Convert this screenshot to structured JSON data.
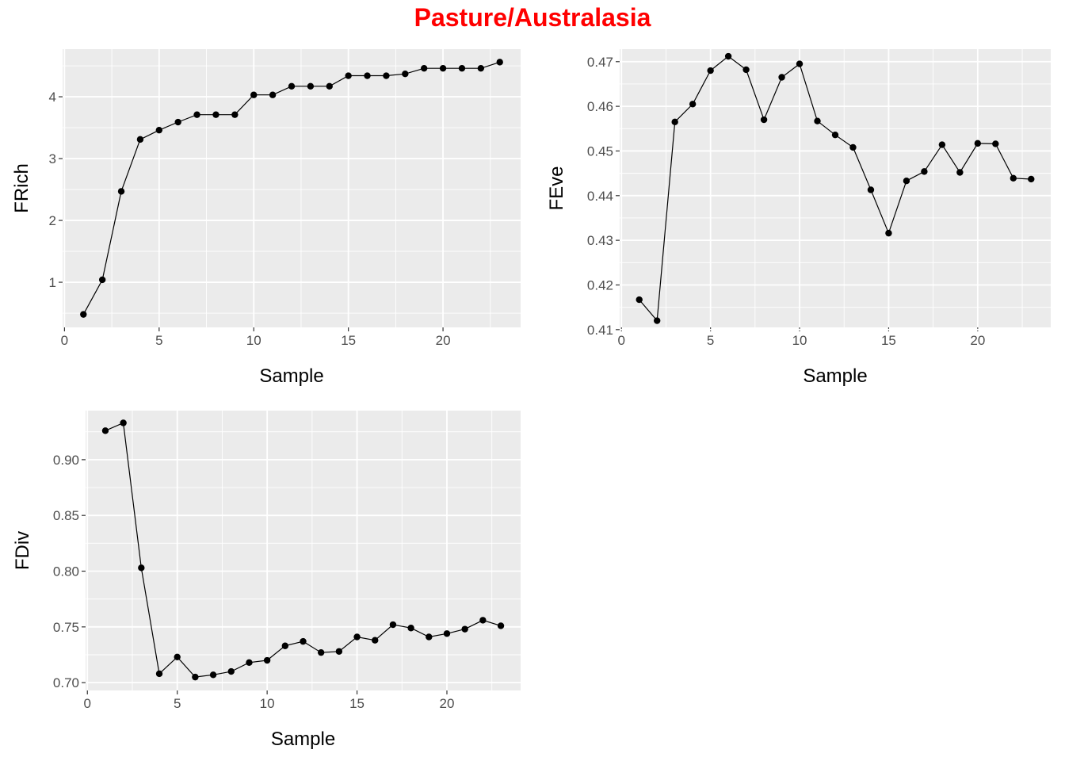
{
  "title": "Pasture/Australasia",
  "colors": {
    "title": "#ff0000",
    "panel_bg": "#ebebeb",
    "grid": "#ffffff",
    "series": "#000000",
    "tick_label": "#4d4d4d"
  },
  "chart_data": [
    {
      "type": "line",
      "xlabel": "Sample",
      "ylabel": "FRich",
      "xlim": [
        -0.1,
        24.1
      ],
      "ylim": [
        0.27,
        4.77
      ],
      "xticks": [
        0,
        5,
        10,
        15,
        20
      ],
      "yticks": [
        1,
        2,
        3,
        4
      ],
      "grid": true,
      "x": [
        1,
        2,
        3,
        4,
        5,
        6,
        7,
        8,
        9,
        10,
        11,
        12,
        13,
        14,
        15,
        16,
        17,
        18,
        19,
        20,
        21,
        22,
        23
      ],
      "series": [
        {
          "values": [
            0.48,
            1.04,
            2.47,
            3.31,
            3.46,
            3.59,
            3.71,
            3.71,
            3.71,
            4.03,
            4.03,
            4.17,
            4.17,
            4.17,
            4.34,
            4.34,
            4.34,
            4.37,
            4.46,
            4.46,
            4.46,
            4.46,
            4.56
          ]
        }
      ]
    },
    {
      "type": "line",
      "xlabel": "Sample",
      "ylabel": "FEve",
      "xlim": [
        -0.1,
        24.1
      ],
      "ylim": [
        0.4105,
        0.4728
      ],
      "xticks": [
        0,
        5,
        10,
        15,
        20
      ],
      "yticks": [
        0.41,
        0.42,
        0.43,
        0.44,
        0.45,
        0.46,
        0.47
      ],
      "ytick_labels": [
        "0.41",
        "0.42",
        "0.43",
        "0.44",
        "0.45",
        "0.46",
        "0.47"
      ],
      "grid": true,
      "x": [
        1,
        2,
        3,
        4,
        5,
        6,
        7,
        8,
        9,
        10,
        11,
        12,
        13,
        14,
        15,
        16,
        17,
        18,
        19,
        20,
        21,
        22,
        23
      ],
      "series": [
        {
          "values": [
            0.4167,
            0.412,
            0.4565,
            0.4605,
            0.468,
            0.4712,
            0.4682,
            0.457,
            0.4665,
            0.4695,
            0.4567,
            0.4536,
            0.4508,
            0.4413,
            0.4316,
            0.4433,
            0.4454,
            0.4514,
            0.4452,
            0.4517,
            0.4516,
            0.4439,
            0.4437
          ]
        }
      ]
    },
    {
      "type": "line",
      "xlabel": "Sample",
      "ylabel": "FDiv",
      "xlim": [
        -0.1,
        24.1
      ],
      "ylim": [
        0.693,
        0.944
      ],
      "xticks": [
        0,
        5,
        10,
        15,
        20
      ],
      "yticks": [
        0.7,
        0.75,
        0.8,
        0.85,
        0.9
      ],
      "ytick_labels": [
        "0.70",
        "0.75",
        "0.80",
        "0.85",
        "0.90"
      ],
      "grid": true,
      "x": [
        1,
        2,
        3,
        4,
        5,
        6,
        7,
        8,
        9,
        10,
        11,
        12,
        13,
        14,
        15,
        16,
        17,
        18,
        19,
        20,
        21,
        22,
        23
      ],
      "series": [
        {
          "values": [
            0.926,
            0.933,
            0.803,
            0.708,
            0.723,
            0.705,
            0.707,
            0.71,
            0.718,
            0.72,
            0.733,
            0.737,
            0.727,
            0.728,
            0.741,
            0.738,
            0.752,
            0.749,
            0.741,
            0.744,
            0.748,
            0.756,
            0.751
          ]
        }
      ]
    }
  ]
}
